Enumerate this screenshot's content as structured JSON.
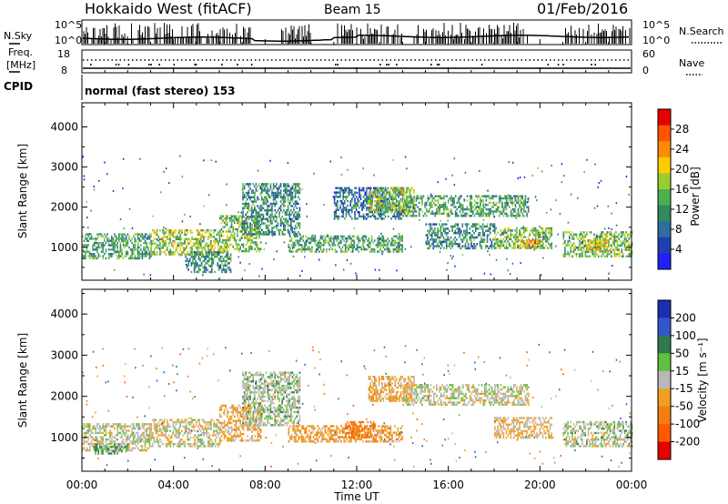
{
  "header": {
    "station": "Hokkaido West (fitACF)",
    "beam": "Beam 15",
    "date": "01/Feb/2016"
  },
  "top_panel": {
    "nsky_label": "N.Sky",
    "nsearch_label": "N.Search",
    "left_ticks": [
      "10^5",
      "10^0"
    ],
    "right_ticks": [
      "10^5",
      "10^0"
    ],
    "freq_label_1": "Freq.",
    "freq_label_2": "[MHz]",
    "freq_ticks": [
      "18",
      "8"
    ],
    "nave_label": "Nave",
    "nave_ticks": [
      "60",
      "0"
    ],
    "cpid_label": "CPID",
    "cpid_text": "normal (fast stereo) 153"
  },
  "colors": {
    "power_scale": [
      "#1f1fff",
      "#1e3fb0",
      "#2e6e9e",
      "#2f8a5e",
      "#4caf50",
      "#9acd32",
      "#ffcc00",
      "#ff8c00",
      "#ff5500",
      "#e60000"
    ],
    "velocity_scale": [
      "#1a2fb0",
      "#3355cc",
      "#2f7a4e",
      "#5fbf3f",
      "#b8b8b8",
      "#f0a020",
      "#f07f10",
      "#ff5a00",
      "#e60000"
    ]
  },
  "chart_data": [
    {
      "type": "heatmap",
      "title": "",
      "xlabel": "",
      "ylabel": "Slant Range [km]",
      "xlim": [
        0,
        24
      ],
      "ylim": [
        180,
        4600
      ],
      "x_ticks": [
        "00:00",
        "04:00",
        "08:00",
        "12:00",
        "16:00",
        "20:00",
        "00:00"
      ],
      "y_ticks": [
        "1000",
        "2000",
        "3000",
        "4000"
      ],
      "colorbar_label": "Power [dB]",
      "colorbar_ticks": [
        "4",
        "8",
        "12",
        "16",
        "20",
        "24",
        "28"
      ],
      "colorbar_range": [
        0,
        30
      ],
      "echo_bands": [
        {
          "t0": 0.0,
          "t1": 3.0,
          "r0": 700,
          "r1": 1350,
          "level": 12
        },
        {
          "t0": 3.0,
          "t1": 6.0,
          "r0": 800,
          "r1": 1450,
          "level": 16
        },
        {
          "t0": 4.5,
          "t1": 6.5,
          "r0": 400,
          "r1": 900,
          "level": 10
        },
        {
          "t0": 6.0,
          "t1": 7.8,
          "r0": 900,
          "r1": 1800,
          "level": 14
        },
        {
          "t0": 7.0,
          "t1": 9.5,
          "r0": 1300,
          "r1": 2600,
          "level": 10
        },
        {
          "t0": 9.0,
          "t1": 14.0,
          "r0": 900,
          "r1": 1300,
          "level": 12
        },
        {
          "t0": 11.0,
          "t1": 14.0,
          "r0": 1700,
          "r1": 2500,
          "level": 8
        },
        {
          "t0": 12.5,
          "t1": 14.5,
          "r0": 1900,
          "r1": 2500,
          "level": 16
        },
        {
          "t0": 14.0,
          "t1": 19.5,
          "r0": 1800,
          "r1": 2300,
          "level": 12
        },
        {
          "t0": 15.0,
          "t1": 18.0,
          "r0": 1000,
          "r1": 1600,
          "level": 10
        },
        {
          "t0": 18.0,
          "t1": 20.5,
          "r0": 1000,
          "r1": 1500,
          "level": 14
        },
        {
          "t0": 19.0,
          "t1": 20.0,
          "r0": 1000,
          "r1": 1200,
          "level": 22
        },
        {
          "t0": 21.0,
          "t1": 24.0,
          "r0": 800,
          "r1": 1400,
          "level": 14
        },
        {
          "t0": 22.0,
          "t1": 23.0,
          "r0": 900,
          "r1": 1200,
          "level": 20
        }
      ]
    },
    {
      "type": "heatmap",
      "title": "",
      "xlabel": "Time UT",
      "ylabel": "Slant Range [km]",
      "xlim": [
        0,
        24
      ],
      "ylim": [
        180,
        4600
      ],
      "x_ticks": [
        "00:00",
        "04:00",
        "08:00",
        "12:00",
        "16:00",
        "20:00",
        "00:00"
      ],
      "y_ticks": [
        "1000",
        "2000",
        "3000",
        "4000"
      ],
      "colorbar_label": "Velocity [m s⁻¹]",
      "colorbar_ticks": [
        "200",
        "100",
        "50",
        "15",
        "-15",
        "-50",
        "-100",
        "-200"
      ],
      "colorbar_range": [
        -250,
        250
      ],
      "echo_bands": [
        {
          "t0": 0.0,
          "t1": 3.0,
          "r0": 700,
          "r1": 1350,
          "vel": 0
        },
        {
          "t0": 3.0,
          "t1": 6.0,
          "r0": 800,
          "r1": 1450,
          "vel": -5
        },
        {
          "t0": 0.5,
          "t1": 2.0,
          "r0": 600,
          "r1": 850,
          "vel": 30
        },
        {
          "t0": 6.0,
          "t1": 7.8,
          "r0": 900,
          "r1": 1800,
          "vel": -30
        },
        {
          "t0": 7.0,
          "t1": 9.5,
          "r0": 1300,
          "r1": 2600,
          "vel": 10
        },
        {
          "t0": 9.0,
          "t1": 14.0,
          "r0": 900,
          "r1": 1300,
          "vel": -40
        },
        {
          "t0": 11.5,
          "t1": 12.8,
          "r0": 1000,
          "r1": 1400,
          "vel": -90
        },
        {
          "t0": 12.5,
          "t1": 14.5,
          "r0": 1900,
          "r1": 2500,
          "vel": -30
        },
        {
          "t0": 14.0,
          "t1": 19.5,
          "r0": 1800,
          "r1": 2300,
          "vel": 0
        },
        {
          "t0": 18.0,
          "t1": 20.5,
          "r0": 1000,
          "r1": 1500,
          "vel": -20
        },
        {
          "t0": 21.0,
          "t1": 24.0,
          "r0": 800,
          "r1": 1400,
          "vel": 5
        }
      ]
    }
  ]
}
